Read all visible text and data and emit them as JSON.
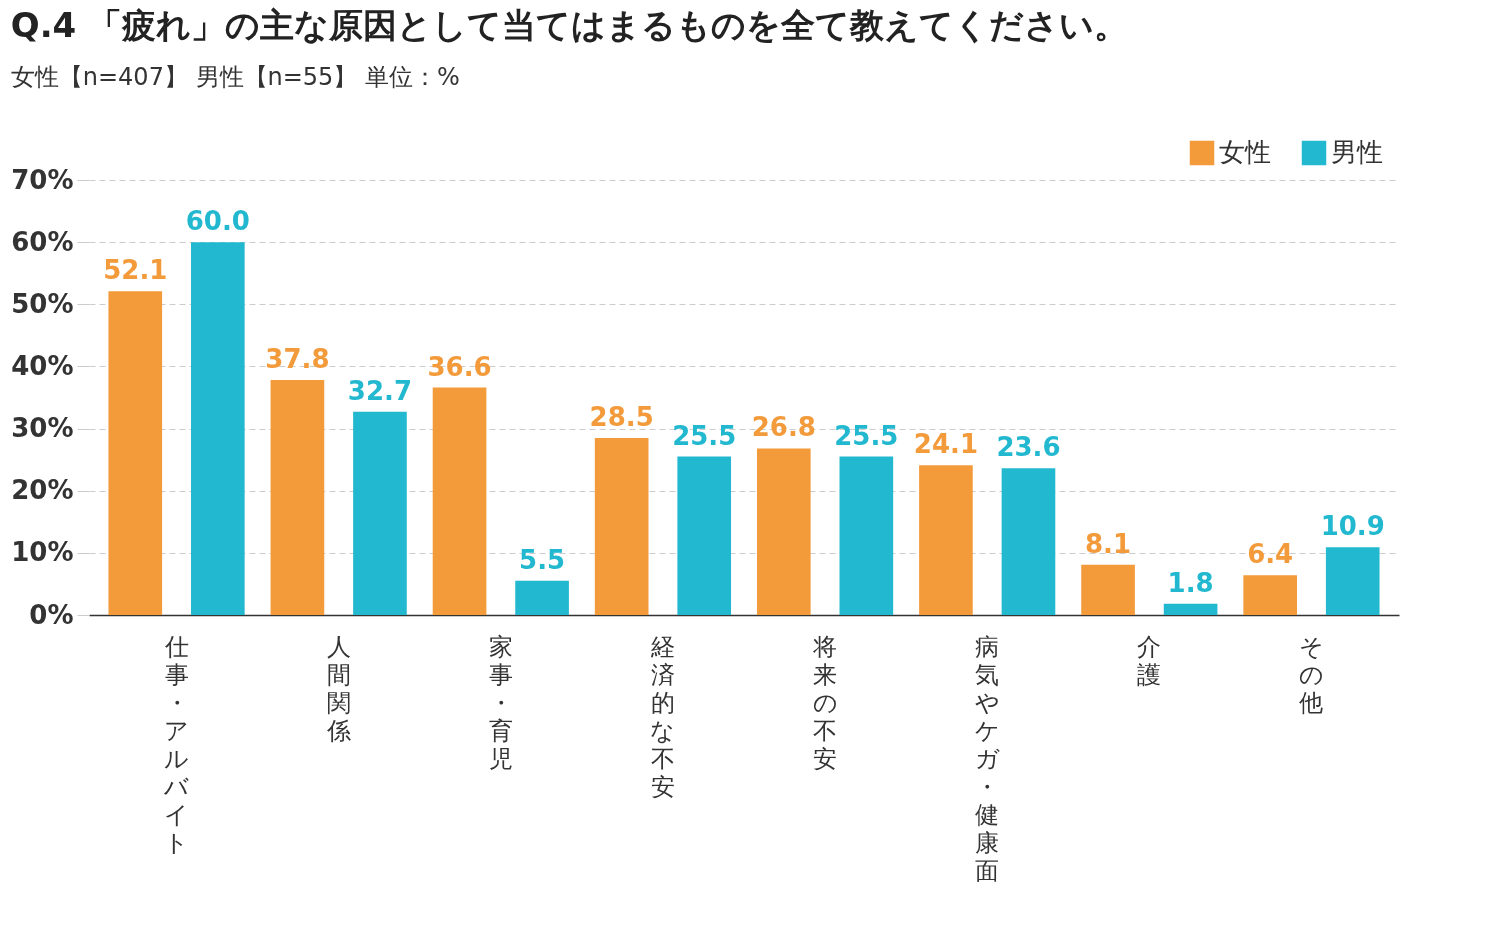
{
  "chart_data": {
    "type": "bar",
    "title": "Q.4 「疲れ」の主な原因として当てはまるものを全て教えてください。",
    "subtitle": "女性【n=407】 男性【n=55】 単位：%",
    "categories": [
      "仕事・アルバイト",
      "人間関係",
      "家事・育児",
      "経済的な不安",
      "将来の不安",
      "病気やケガ・健康面",
      "介護",
      "その他"
    ],
    "series": [
      {
        "name": "女性",
        "color": "#f39a3b",
        "values": [
          52.1,
          37.8,
          36.6,
          28.5,
          26.8,
          24.1,
          8.1,
          6.4
        ],
        "value_labels": [
          "52.1",
          "37.8",
          "36.6",
          "28.5",
          "26.8",
          "24.1",
          "8.1",
          "6.4"
        ]
      },
      {
        "name": "男性",
        "color": "#22b8cf",
        "values": [
          60.0,
          32.7,
          5.5,
          25.5,
          25.5,
          23.6,
          1.8,
          10.9
        ],
        "value_labels": [
          "60.0",
          "32.7",
          "5.5",
          "25.5",
          "25.5",
          "23.6",
          "1.8",
          "10.9"
        ]
      }
    ],
    "ylim": [
      0,
      70
    ],
    "yticks": [
      {
        "value": 0,
        "label": "0%"
      },
      {
        "value": 10,
        "label": "10%"
      },
      {
        "value": 20,
        "label": "20%"
      },
      {
        "value": 30,
        "label": "30%"
      },
      {
        "value": 40,
        "label": "40%"
      },
      {
        "value": 50,
        "label": "50%"
      },
      {
        "value": 60,
        "label": "60%"
      },
      {
        "value": 70,
        "label": "70%"
      }
    ],
    "grid": "y",
    "legend": "top right"
  }
}
